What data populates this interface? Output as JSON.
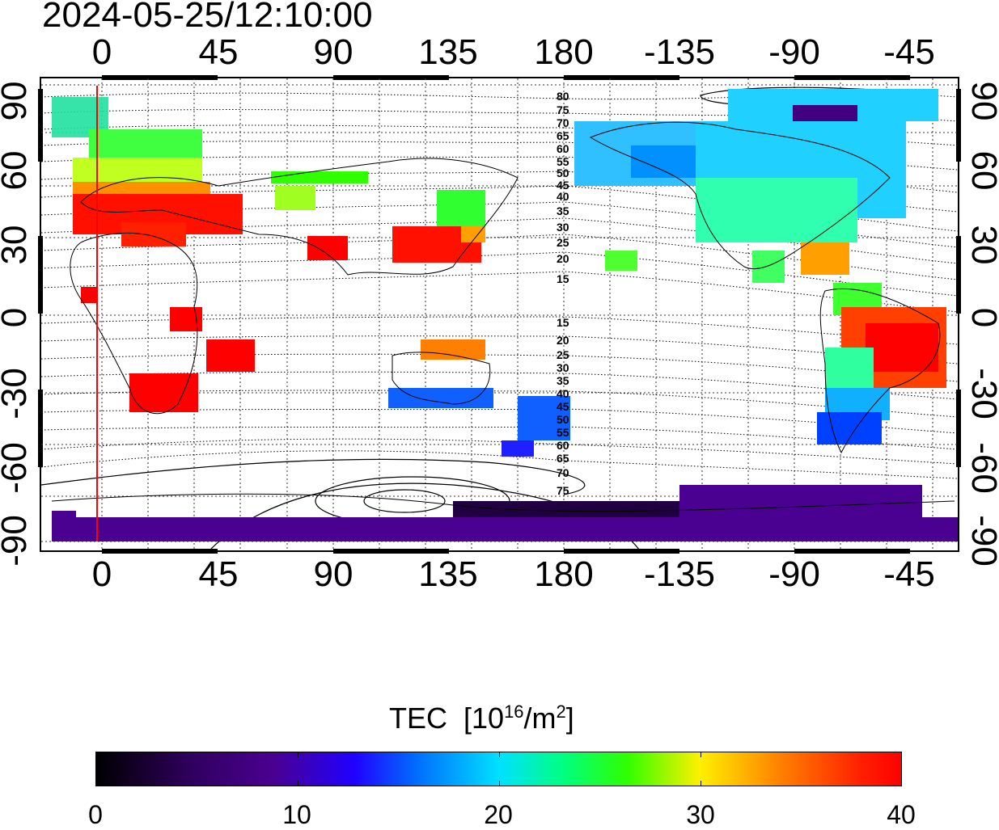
{
  "timestamp": "2024-05-25/12:10:00",
  "lon_ticks_top": [
    "0",
    "45",
    "90",
    "135",
    "180",
    "-135",
    "-90",
    "-45"
  ],
  "lon_ticks_bottom": [
    "0",
    "45",
    "90",
    "135",
    "180",
    "-135",
    "-90",
    "-45"
  ],
  "lat_ticks_left": [
    "90",
    "60",
    "30",
    "0",
    "-30",
    "-60",
    "-90"
  ],
  "lat_ticks_right": [
    "90",
    "60",
    "30",
    "0",
    "-30",
    "-60",
    "-90"
  ],
  "contour_labels_north": [
    "80",
    "75",
    "70",
    "65",
    "60",
    "55",
    "50",
    "45",
    "40",
    "35",
    "30",
    "25",
    "20",
    "15"
  ],
  "contour_labels_south": [
    "15",
    "20",
    "25",
    "30",
    "35",
    "40",
    "45",
    "50",
    "55",
    "60",
    "65",
    "70",
    "75"
  ],
  "colorbar": {
    "title": "TEC",
    "unit_base": "[10",
    "unit_exp": "16",
    "unit_mid": "/m",
    "unit_exp2": "2",
    "unit_end": "]",
    "labels": [
      "0",
      "10",
      "20",
      "30",
      "40"
    ],
    "range": [
      0,
      40
    ]
  },
  "colors": {
    "red": "#ff0000",
    "orange": "#ff8000",
    "yellow": "#fff000",
    "green": "#30ff00",
    "cyan": "#00e0ff",
    "blue": "#0050ff",
    "purple": "#4a0090",
    "dark": "#200040"
  }
}
